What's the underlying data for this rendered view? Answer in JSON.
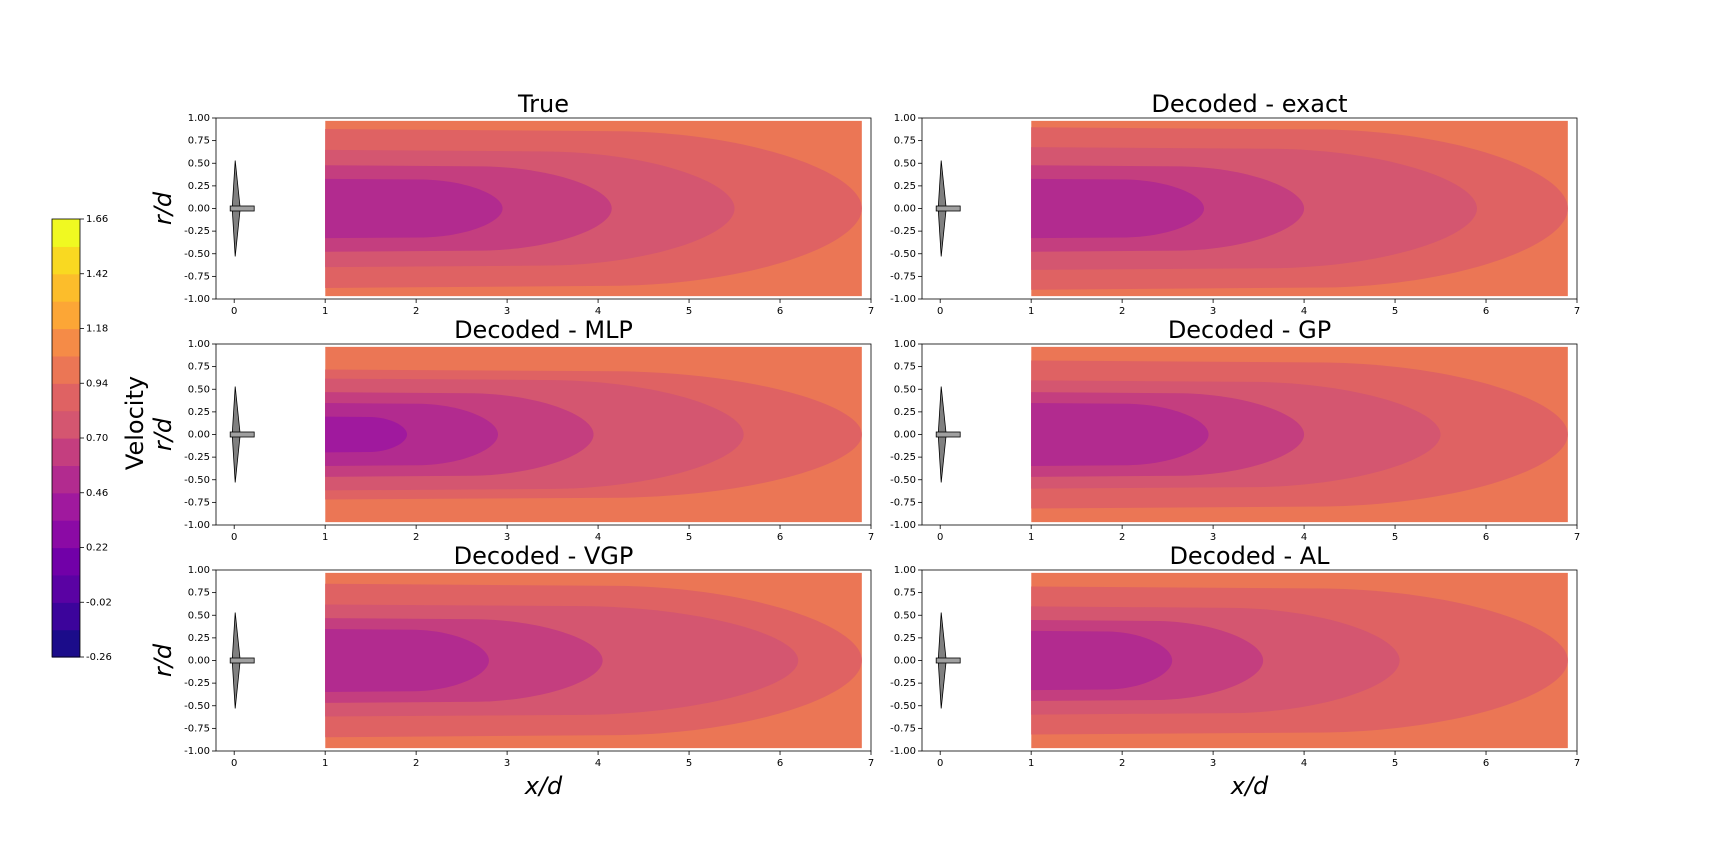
{
  "chart_data": {
    "type": "contour",
    "colorbar": {
      "label": "Velocity",
      "ticks": [
        "1.66",
        "1.42",
        "1.18",
        "0.94",
        "0.70",
        "0.46",
        "0.22",
        "-0.02",
        "-0.26"
      ],
      "range": [
        -0.26,
        1.66
      ],
      "levels": [
        -0.26,
        -0.14,
        -0.02,
        0.1,
        0.22,
        0.34,
        0.46,
        0.58,
        0.7,
        0.82,
        0.94,
        1.06,
        1.18,
        1.3,
        1.42,
        1.54,
        1.66
      ],
      "colors": [
        "#1b0c8a",
        "#3c049b",
        "#5a02a3",
        "#7100a8",
        "#8b0aa5",
        "#a0199e",
        "#b22b8f",
        "#c43e7f",
        "#d45670",
        "#df6263",
        "#eb7655",
        "#f58b47",
        "#fca636",
        "#fcbd2b",
        "#f9d921",
        "#f0f921"
      ]
    },
    "x_axis": {
      "label": "x/d",
      "range": [
        -0.2,
        7
      ],
      "ticks": [
        "0",
        "1",
        "2",
        "3",
        "4",
        "5",
        "6",
        "7"
      ]
    },
    "y_axis": {
      "label": "r/d",
      "range": [
        -1.0,
        1.0
      ],
      "ticks": [
        "1.00",
        "0.75",
        "0.50",
        "0.25",
        "0.00",
        "-0.25",
        "-0.50",
        "-0.75",
        "-1.00"
      ]
    },
    "field_extent": {
      "x": [
        1.0,
        6.9
      ],
      "r": [
        -0.97,
        0.97
      ]
    },
    "panels": [
      {
        "title": "True",
        "contours": [
          {
            "level": 1.06,
            "color": "#eb7655",
            "inner_edge": 0.88
          },
          {
            "level": 0.94,
            "color": "#df6263",
            "x_end": 6.9,
            "r_half": 0.88
          },
          {
            "level": 0.82,
            "color": "#d45670",
            "x_end": 5.5,
            "r_half": 0.65
          },
          {
            "level": 0.7,
            "color": "#c43e7f",
            "x_end": 4.15,
            "r_half": 0.48
          },
          {
            "level": 0.58,
            "color": "#b22b8f",
            "x_end": 2.95,
            "r_half": 0.33
          }
        ]
      },
      {
        "title": "Decoded - exact",
        "contours": [
          {
            "level": 1.06,
            "color": "#eb7655",
            "inner_edge": 0.9
          },
          {
            "level": 0.94,
            "color": "#df6263",
            "x_end": 6.9,
            "r_half": 0.9
          },
          {
            "level": 0.82,
            "color": "#d45670",
            "x_end": 5.9,
            "r_half": 0.68
          },
          {
            "level": 0.7,
            "color": "#c43e7f",
            "x_end": 4.0,
            "r_half": 0.48
          },
          {
            "level": 0.58,
            "color": "#b22b8f",
            "x_end": 2.9,
            "r_half": 0.33
          }
        ]
      },
      {
        "title": "Decoded - MLP",
        "contours": [
          {
            "level": 1.06,
            "color": "#eb7655",
            "inner_edge": 0.72
          },
          {
            "level": 0.94,
            "color": "#df6263",
            "x_end": 6.9,
            "r_half": 0.72
          },
          {
            "level": 0.82,
            "color": "#d45670",
            "x_end": 5.6,
            "r_half": 0.62
          },
          {
            "level": 0.7,
            "color": "#c43e7f",
            "x_end": 3.95,
            "r_half": 0.47
          },
          {
            "level": 0.58,
            "color": "#b22b8f",
            "x_end": 2.9,
            "r_half": 0.35
          },
          {
            "level": 0.46,
            "color": "#a0199e",
            "x_end": 1.9,
            "r_half": 0.2
          }
        ]
      },
      {
        "title": "Decoded - GP",
        "contours": [
          {
            "level": 1.06,
            "color": "#eb7655",
            "inner_edge": 0.82
          },
          {
            "level": 0.94,
            "color": "#df6263",
            "x_end": 6.9,
            "r_half": 0.82
          },
          {
            "level": 0.82,
            "color": "#d45670",
            "x_end": 5.5,
            "r_half": 0.6
          },
          {
            "level": 0.7,
            "color": "#c43e7f",
            "x_end": 4.0,
            "r_half": 0.47
          },
          {
            "level": 0.58,
            "color": "#b22b8f",
            "x_end": 2.95,
            "r_half": 0.35
          }
        ]
      },
      {
        "title": "Decoded - VGP",
        "contours": [
          {
            "level": 1.06,
            "color": "#eb7655",
            "inner_edge": 0.85
          },
          {
            "level": 0.94,
            "color": "#df6263",
            "x_end": 6.9,
            "r_half": 0.85
          },
          {
            "level": 0.82,
            "color": "#d45670",
            "x_end": 6.2,
            "r_half": 0.62
          },
          {
            "level": 0.7,
            "color": "#c43e7f",
            "x_end": 4.05,
            "r_half": 0.47
          },
          {
            "level": 0.58,
            "color": "#b22b8f",
            "x_end": 2.8,
            "r_half": 0.35
          }
        ]
      },
      {
        "title": "Decoded - AL",
        "contours": [
          {
            "level": 1.06,
            "color": "#eb7655",
            "inner_edge": 0.82
          },
          {
            "level": 0.94,
            "color": "#df6263",
            "x_end": 6.9,
            "r_half": 0.82
          },
          {
            "level": 0.82,
            "color": "#d45670",
            "x_end": 5.05,
            "r_half": 0.6
          },
          {
            "level": 0.7,
            "color": "#c43e7f",
            "x_end": 3.55,
            "r_half": 0.45
          },
          {
            "level": 0.58,
            "color": "#b22b8f",
            "x_end": 2.55,
            "r_half": 0.33
          }
        ]
      }
    ]
  }
}
